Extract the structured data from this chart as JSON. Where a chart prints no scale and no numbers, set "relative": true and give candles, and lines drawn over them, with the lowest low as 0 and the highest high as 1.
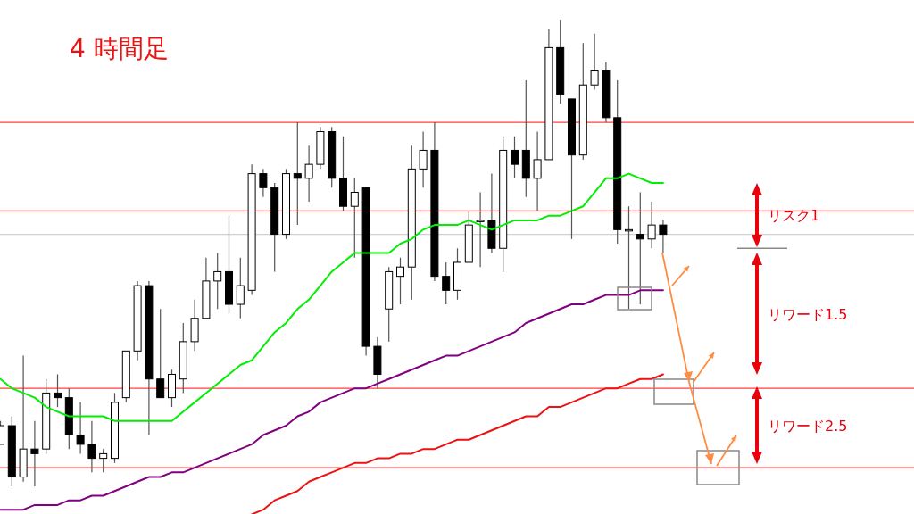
{
  "chart_data": {
    "type": "candlestick",
    "title": "4 時間足",
    "relative": true,
    "categories": [
      null,
      null,
      null,
      null,
      null,
      null,
      null,
      null,
      null,
      null,
      null,
      null,
      null,
      null,
      null,
      null,
      null,
      null,
      null,
      null,
      null,
      null,
      null,
      null,
      null,
      null,
      null,
      null,
      null,
      null,
      null,
      null,
      null,
      null,
      null,
      null,
      null,
      null,
      null,
      null,
      null,
      null,
      null,
      null,
      null,
      null,
      null,
      null,
      null,
      null,
      null,
      null,
      null,
      null,
      null,
      null,
      null,
      null,
      null
    ],
    "ohlc": [
      [
        0.09,
        0.14,
        0.09,
        0.13
      ],
      [
        0.13,
        0.15,
        0.0,
        0.02
      ],
      [
        0.02,
        0.28,
        0.01,
        0.08
      ],
      [
        0.08,
        0.14,
        0.0,
        0.07
      ],
      [
        0.08,
        0.23,
        0.07,
        0.2
      ],
      [
        0.2,
        0.24,
        0.17,
        0.19
      ],
      [
        0.19,
        0.21,
        0.08,
        0.11
      ],
      [
        0.11,
        0.18,
        0.07,
        0.09
      ],
      [
        0.09,
        0.14,
        0.03,
        0.06
      ],
      [
        0.06,
        0.08,
        0.03,
        0.07
      ],
      [
        0.06,
        0.2,
        0.05,
        0.18
      ],
      [
        0.19,
        0.29,
        0.18,
        0.29
      ],
      [
        0.29,
        0.44,
        0.27,
        0.43
      ],
      [
        0.43,
        0.44,
        0.11,
        0.23
      ],
      [
        0.23,
        0.38,
        0.19,
        0.19
      ],
      [
        0.19,
        0.25,
        0.17,
        0.24
      ],
      [
        0.23,
        0.35,
        0.2,
        0.31
      ],
      [
        0.31,
        0.4,
        0.29,
        0.36
      ],
      [
        0.36,
        0.49,
        0.36,
        0.44
      ],
      [
        0.44,
        0.5,
        0.38,
        0.46
      ],
      [
        0.46,
        0.58,
        0.37,
        0.39
      ],
      [
        0.39,
        0.49,
        0.36,
        0.43
      ],
      [
        0.42,
        0.69,
        0.41,
        0.67
      ],
      [
        0.67,
        0.68,
        0.62,
        0.64
      ],
      [
        0.64,
        0.65,
        0.46,
        0.54
      ],
      [
        0.54,
        0.68,
        0.53,
        0.67
      ],
      [
        0.67,
        0.78,
        0.56,
        0.66
      ],
      [
        0.66,
        0.73,
        0.61,
        0.69
      ],
      [
        0.69,
        0.77,
        0.68,
        0.76
      ],
      [
        0.76,
        0.77,
        0.64,
        0.66
      ],
      [
        0.66,
        0.75,
        0.59,
        0.6
      ],
      [
        0.6,
        0.66,
        0.49,
        0.63
      ],
      [
        0.64,
        0.64,
        0.28,
        0.3
      ],
      [
        0.3,
        0.32,
        0.21,
        0.24
      ],
      [
        0.38,
        0.47,
        0.31,
        0.46
      ],
      [
        0.45,
        0.49,
        0.39,
        0.47
      ],
      [
        0.47,
        0.73,
        0.4,
        0.68
      ],
      [
        0.68,
        0.76,
        0.64,
        0.72
      ],
      [
        0.72,
        0.78,
        0.44,
        0.45
      ],
      [
        0.45,
        0.48,
        0.39,
        0.42
      ],
      [
        0.42,
        0.51,
        0.4,
        0.48
      ],
      [
        0.48,
        0.59,
        0.48,
        0.56
      ],
      [
        0.57,
        0.63,
        0.47,
        0.57
      ],
      [
        0.57,
        0.67,
        0.5,
        0.51
      ],
      [
        0.51,
        0.75,
        0.46,
        0.72
      ],
      [
        0.72,
        0.75,
        0.66,
        0.69
      ],
      [
        0.72,
        0.87,
        0.62,
        0.66
      ],
      [
        0.66,
        0.76,
        0.59,
        0.7
      ],
      [
        0.7,
        0.98,
        0.7,
        0.94
      ],
      [
        0.94,
        1.0,
        0.82,
        0.84
      ],
      [
        0.83,
        0.83,
        0.53,
        0.71
      ],
      [
        0.71,
        0.95,
        0.7,
        0.86
      ],
      [
        0.86,
        0.97,
        0.85,
        0.89
      ],
      [
        0.89,
        0.91,
        0.78,
        0.79
      ],
      [
        0.79,
        0.87,
        0.52,
        0.55
      ],
      [
        0.55,
        0.6,
        0.38,
        0.55
      ],
      [
        0.54,
        0.63,
        0.39,
        0.53
      ],
      [
        0.53,
        0.61,
        0.51,
        0.56
      ],
      [
        0.56,
        0.57,
        0.5,
        0.54
      ]
    ],
    "series": [
      {
        "type": "line",
        "color": "#00ee00",
        "values": [
          0.23,
          0.21,
          0.2,
          0.19,
          0.17,
          0.16,
          0.15,
          0.15,
          0.15,
          0.15,
          0.14,
          0.14,
          0.14,
          0.14,
          0.14,
          0.14,
          0.16,
          0.18,
          0.2,
          0.22,
          0.24,
          0.26,
          0.27,
          0.3,
          0.33,
          0.35,
          0.38,
          0.4,
          0.43,
          0.46,
          0.48,
          0.5,
          0.5,
          0.5,
          0.5,
          0.52,
          0.53,
          0.55,
          0.56,
          0.56,
          0.56,
          0.57,
          0.56,
          0.55,
          0.56,
          0.57,
          0.57,
          0.57,
          0.58,
          0.58,
          0.59,
          0.6,
          0.63,
          0.66,
          0.66,
          0.67,
          0.66,
          0.65,
          0.65
        ]
      },
      {
        "type": "line",
        "color": "#800080",
        "values": [
          -0.05,
          -0.05,
          -0.05,
          -0.04,
          -0.04,
          -0.04,
          -0.03,
          -0.03,
          -0.02,
          -0.02,
          -0.01,
          0.0,
          0.01,
          0.02,
          0.02,
          0.03,
          0.03,
          0.04,
          0.05,
          0.06,
          0.07,
          0.08,
          0.09,
          0.11,
          0.12,
          0.13,
          0.15,
          0.16,
          0.18,
          0.19,
          0.2,
          0.21,
          0.21,
          0.22,
          0.23,
          0.24,
          0.25,
          0.26,
          0.27,
          0.28,
          0.28,
          0.29,
          0.3,
          0.31,
          0.32,
          0.33,
          0.35,
          0.36,
          0.37,
          0.38,
          0.39,
          0.39,
          0.4,
          0.41,
          0.41,
          0.41,
          0.42,
          0.42,
          0.42
        ]
      },
      {
        "type": "line",
        "color": "#ee1111",
        "values": [
          null,
          null,
          null,
          null,
          null,
          null,
          null,
          null,
          null,
          null,
          null,
          null,
          null,
          null,
          null,
          null,
          null,
          null,
          null,
          null,
          null,
          null,
          -0.06,
          -0.05,
          -0.03,
          -0.02,
          -0.01,
          0.01,
          0.02,
          0.03,
          0.04,
          0.05,
          0.05,
          0.06,
          0.06,
          0.07,
          0.07,
          0.08,
          0.08,
          0.09,
          0.1,
          0.1,
          0.11,
          0.12,
          0.13,
          0.14,
          0.15,
          0.15,
          0.17,
          0.17,
          0.18,
          0.19,
          0.2,
          0.21,
          0.21,
          0.22,
          0.23,
          0.23,
          0.24
        ]
      }
    ],
    "ref_lines": [
      {
        "axis": "y",
        "value": 0.78,
        "color": "#ff4040"
      },
      {
        "axis": "y",
        "value": 0.59,
        "color": "#ff4040"
      },
      {
        "axis": "y",
        "value": 0.54,
        "color": "#d0d0d0"
      },
      {
        "axis": "y",
        "value": 0.21,
        "color": "#ff4040"
      },
      {
        "axis": "y",
        "value": 0.04,
        "color": "#ff4040"
      }
    ],
    "annotations": [
      "リスク1",
      "リワード1.5",
      "リワード2.5"
    ]
  }
}
